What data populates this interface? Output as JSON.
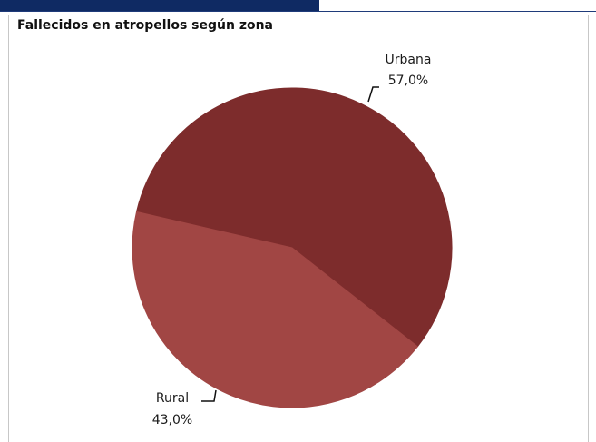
{
  "colors": {
    "header_bar": "#0f2a63",
    "urbana": "#7d2c2c",
    "rural": "#a14644"
  },
  "chart_data": {
    "type": "pie",
    "title": "Fallecidos en atropellos según zona",
    "slices": [
      {
        "name": "Urbana",
        "value": 57.0,
        "label": "57,0%",
        "color": "#7d2c2c"
      },
      {
        "name": "Rural",
        "value": 43.0,
        "label": "43,0%",
        "color": "#a14644"
      }
    ]
  }
}
